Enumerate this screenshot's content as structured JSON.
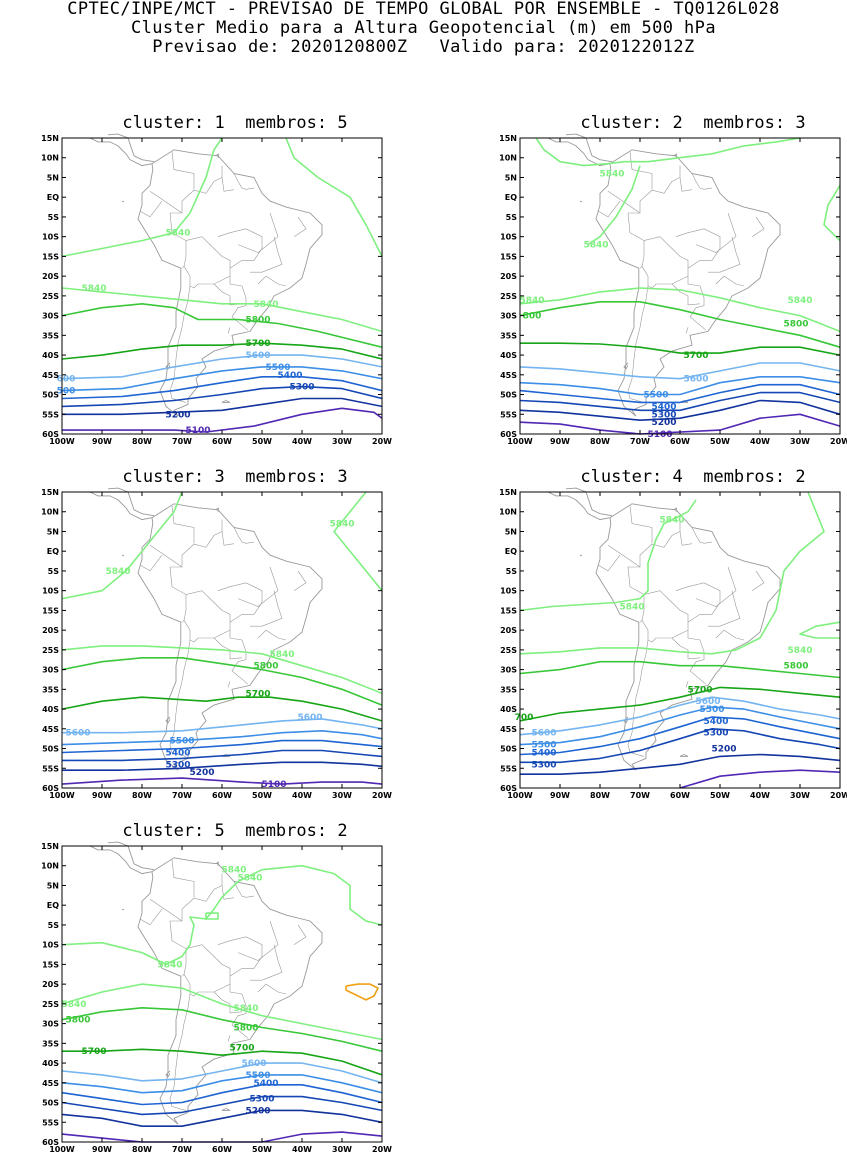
{
  "header": {
    "line1": "CPTEC/INPE/MCT - PREVISAO DE TEMPO GLOBAL POR ENSEMBLE - TQ0126L028",
    "line2": "Cluster Medio para a Altura Geopotencial (m) em 500 hPa",
    "line3": "Previsao de: 2020120800Z   Valido para: 2020122012Z"
  },
  "axes": {
    "lat_labels": [
      "15N",
      "10N",
      "5N",
      "EQ",
      "5S",
      "10S",
      "15S",
      "20S",
      "25S",
      "30S",
      "35S",
      "40S",
      "45S",
      "50S",
      "55S",
      "60S"
    ],
    "lon_labels": [
      "100W",
      "90W",
      "80W",
      "70W",
      "60W",
      "50W",
      "40W",
      "30W",
      "20W"
    ],
    "lat_range": [
      -60,
      15
    ],
    "lon_range": [
      -100,
      -20
    ]
  },
  "colors": {
    "5840": "#7ff07f",
    "5800": "#38c738",
    "5700": "#16a516",
    "5600": "#74b4f0",
    "5500": "#3c8ee6",
    "5400": "#1e64d2",
    "5300": "#1446b4",
    "5200": "#12329c",
    "5100": "#5028b4",
    "orange": "#f0a014",
    "land": "#999999"
  },
  "panels": [
    {
      "title": "cluster: 1  membros: 5",
      "labels": [
        {
          "text": "5840",
          "level": "5840",
          "lon": -71,
          "lat": -9
        },
        {
          "text": "5840",
          "level": "5840",
          "lon": -92,
          "lat": -23
        },
        {
          "text": "5840",
          "level": "5840",
          "lon": -49,
          "lat": -27
        },
        {
          "text": "5800",
          "level": "5800",
          "lon": -51,
          "lat": -31
        },
        {
          "text": "5700",
          "level": "5700",
          "lon": -51,
          "lat": -37
        },
        {
          "text": "5600",
          "level": "5600",
          "lon": -51,
          "lat": -40
        },
        {
          "text": "600",
          "level": "5600",
          "lon": -99,
          "lat": -46
        },
        {
          "text": "5500",
          "level": "5500",
          "lon": -46,
          "lat": -43
        },
        {
          "text": "5400",
          "level": "5400",
          "lon": -43,
          "lat": -45
        },
        {
          "text": "500",
          "level": "5500",
          "lon": -99,
          "lat": -49
        },
        {
          "text": "5300",
          "level": "5300",
          "lon": -40,
          "lat": -48
        },
        {
          "text": "5200",
          "level": "5200",
          "lon": -71,
          "lat": -55
        },
        {
          "text": "5100",
          "level": "5100",
          "lon": -66,
          "lat": -59
        }
      ]
    },
    {
      "title": "cluster: 2  membros: 3",
      "labels": [
        {
          "text": "5840",
          "level": "5840",
          "lon": -77,
          "lat": 6
        },
        {
          "text": "5840",
          "level": "5840",
          "lon": -81,
          "lat": -12
        },
        {
          "text": "5840",
          "level": "5840",
          "lon": -97,
          "lat": -26
        },
        {
          "text": "800",
          "level": "5800",
          "lon": -97,
          "lat": -30
        },
        {
          "text": "5840",
          "level": "5840",
          "lon": -30,
          "lat": -26
        },
        {
          "text": "5800",
          "level": "5800",
          "lon": -31,
          "lat": -32
        },
        {
          "text": "5700",
          "level": "5700",
          "lon": -56,
          "lat": -40
        },
        {
          "text": "5600",
          "level": "5600",
          "lon": -56,
          "lat": -46
        },
        {
          "text": "5500",
          "level": "5500",
          "lon": -66,
          "lat": -50
        },
        {
          "text": "5400",
          "level": "5400",
          "lon": -64,
          "lat": -53
        },
        {
          "text": "5300",
          "level": "5300",
          "lon": -64,
          "lat": -55
        },
        {
          "text": "5200",
          "level": "5200",
          "lon": -64,
          "lat": -57
        },
        {
          "text": "5100",
          "level": "5100",
          "lon": -65,
          "lat": -60
        }
      ]
    },
    {
      "title": "cluster: 3  membros: 3",
      "labels": [
        {
          "text": "5840",
          "level": "5840",
          "lon": -30,
          "lat": 7
        },
        {
          "text": "5840",
          "level": "5840",
          "lon": -86,
          "lat": -5
        },
        {
          "text": "5840",
          "level": "5840",
          "lon": -45,
          "lat": -26
        },
        {
          "text": "5800",
          "level": "5800",
          "lon": -49,
          "lat": -29
        },
        {
          "text": "5700",
          "level": "5700",
          "lon": -51,
          "lat": -36
        },
        {
          "text": "5600",
          "level": "5600",
          "lon": -38,
          "lat": -42
        },
        {
          "text": "5600",
          "level": "5600",
          "lon": -96,
          "lat": -46
        },
        {
          "text": "5500",
          "level": "5500",
          "lon": -70,
          "lat": -48
        },
        {
          "text": "5400",
          "level": "5400",
          "lon": -71,
          "lat": -51
        },
        {
          "text": "5300",
          "level": "5300",
          "lon": -71,
          "lat": -54
        },
        {
          "text": "5200",
          "level": "5200",
          "lon": -65,
          "lat": -56
        },
        {
          "text": "5100",
          "level": "5100",
          "lon": -47,
          "lat": -59
        }
      ]
    },
    {
      "title": "cluster: 4  membros: 2",
      "labels": [
        {
          "text": "5840",
          "level": "5840",
          "lon": -62,
          "lat": 8
        },
        {
          "text": "5840",
          "level": "5840",
          "lon": -72,
          "lat": -14
        },
        {
          "text": "5840",
          "level": "5840",
          "lon": -30,
          "lat": -25
        },
        {
          "text": "5800",
          "level": "5800",
          "lon": -31,
          "lat": -29
        },
        {
          "text": "5700",
          "level": "5700",
          "lon": -55,
          "lat": -35
        },
        {
          "text": "700",
          "level": "5700",
          "lon": -99,
          "lat": -42
        },
        {
          "text": "5600",
          "level": "5600",
          "lon": -53,
          "lat": -38
        },
        {
          "text": "5500",
          "level": "5500",
          "lon": -52,
          "lat": -40
        },
        {
          "text": "5400",
          "level": "5400",
          "lon": -51,
          "lat": -43
        },
        {
          "text": "5300",
          "level": "5300",
          "lon": -51,
          "lat": -46
        },
        {
          "text": "5600",
          "level": "5600",
          "lon": -94,
          "lat": -46
        },
        {
          "text": "5500",
          "level": "5500",
          "lon": -94,
          "lat": -49
        },
        {
          "text": "5400",
          "level": "5400",
          "lon": -94,
          "lat": -51
        },
        {
          "text": "5300",
          "level": "5300",
          "lon": -94,
          "lat": -54
        },
        {
          "text": "5200",
          "level": "5200",
          "lon": -49,
          "lat": -50
        }
      ]
    },
    {
      "title": "cluster: 5  membros: 2",
      "labels": [
        {
          "text": "5840",
          "level": "5840",
          "lon": -57,
          "lat": 9
        },
        {
          "text": "5840",
          "level": "5840",
          "lon": -53,
          "lat": 7
        },
        {
          "text": "5840",
          "level": "5840",
          "lon": -73,
          "lat": -15
        },
        {
          "text": "5840",
          "level": "5840",
          "lon": -97,
          "lat": -25
        },
        {
          "text": "5800",
          "level": "5800",
          "lon": -96,
          "lat": -29
        },
        {
          "text": "5840",
          "level": "5840",
          "lon": -54,
          "lat": -26
        },
        {
          "text": "5800",
          "level": "5800",
          "lon": -54,
          "lat": -31
        },
        {
          "text": "5700",
          "level": "5700",
          "lon": -92,
          "lat": -37
        },
        {
          "text": "5700",
          "level": "5700",
          "lon": -55,
          "lat": -36
        },
        {
          "text": "5600",
          "level": "5600",
          "lon": -52,
          "lat": -40
        },
        {
          "text": "5500",
          "level": "5500",
          "lon": -51,
          "lat": -43
        },
        {
          "text": "5400",
          "level": "5400",
          "lon": -49,
          "lat": -45
        },
        {
          "text": "5300",
          "level": "5300",
          "lon": -50,
          "lat": -49
        },
        {
          "text": "5200",
          "level": "5200",
          "lon": -51,
          "lat": -52
        }
      ]
    }
  ]
}
